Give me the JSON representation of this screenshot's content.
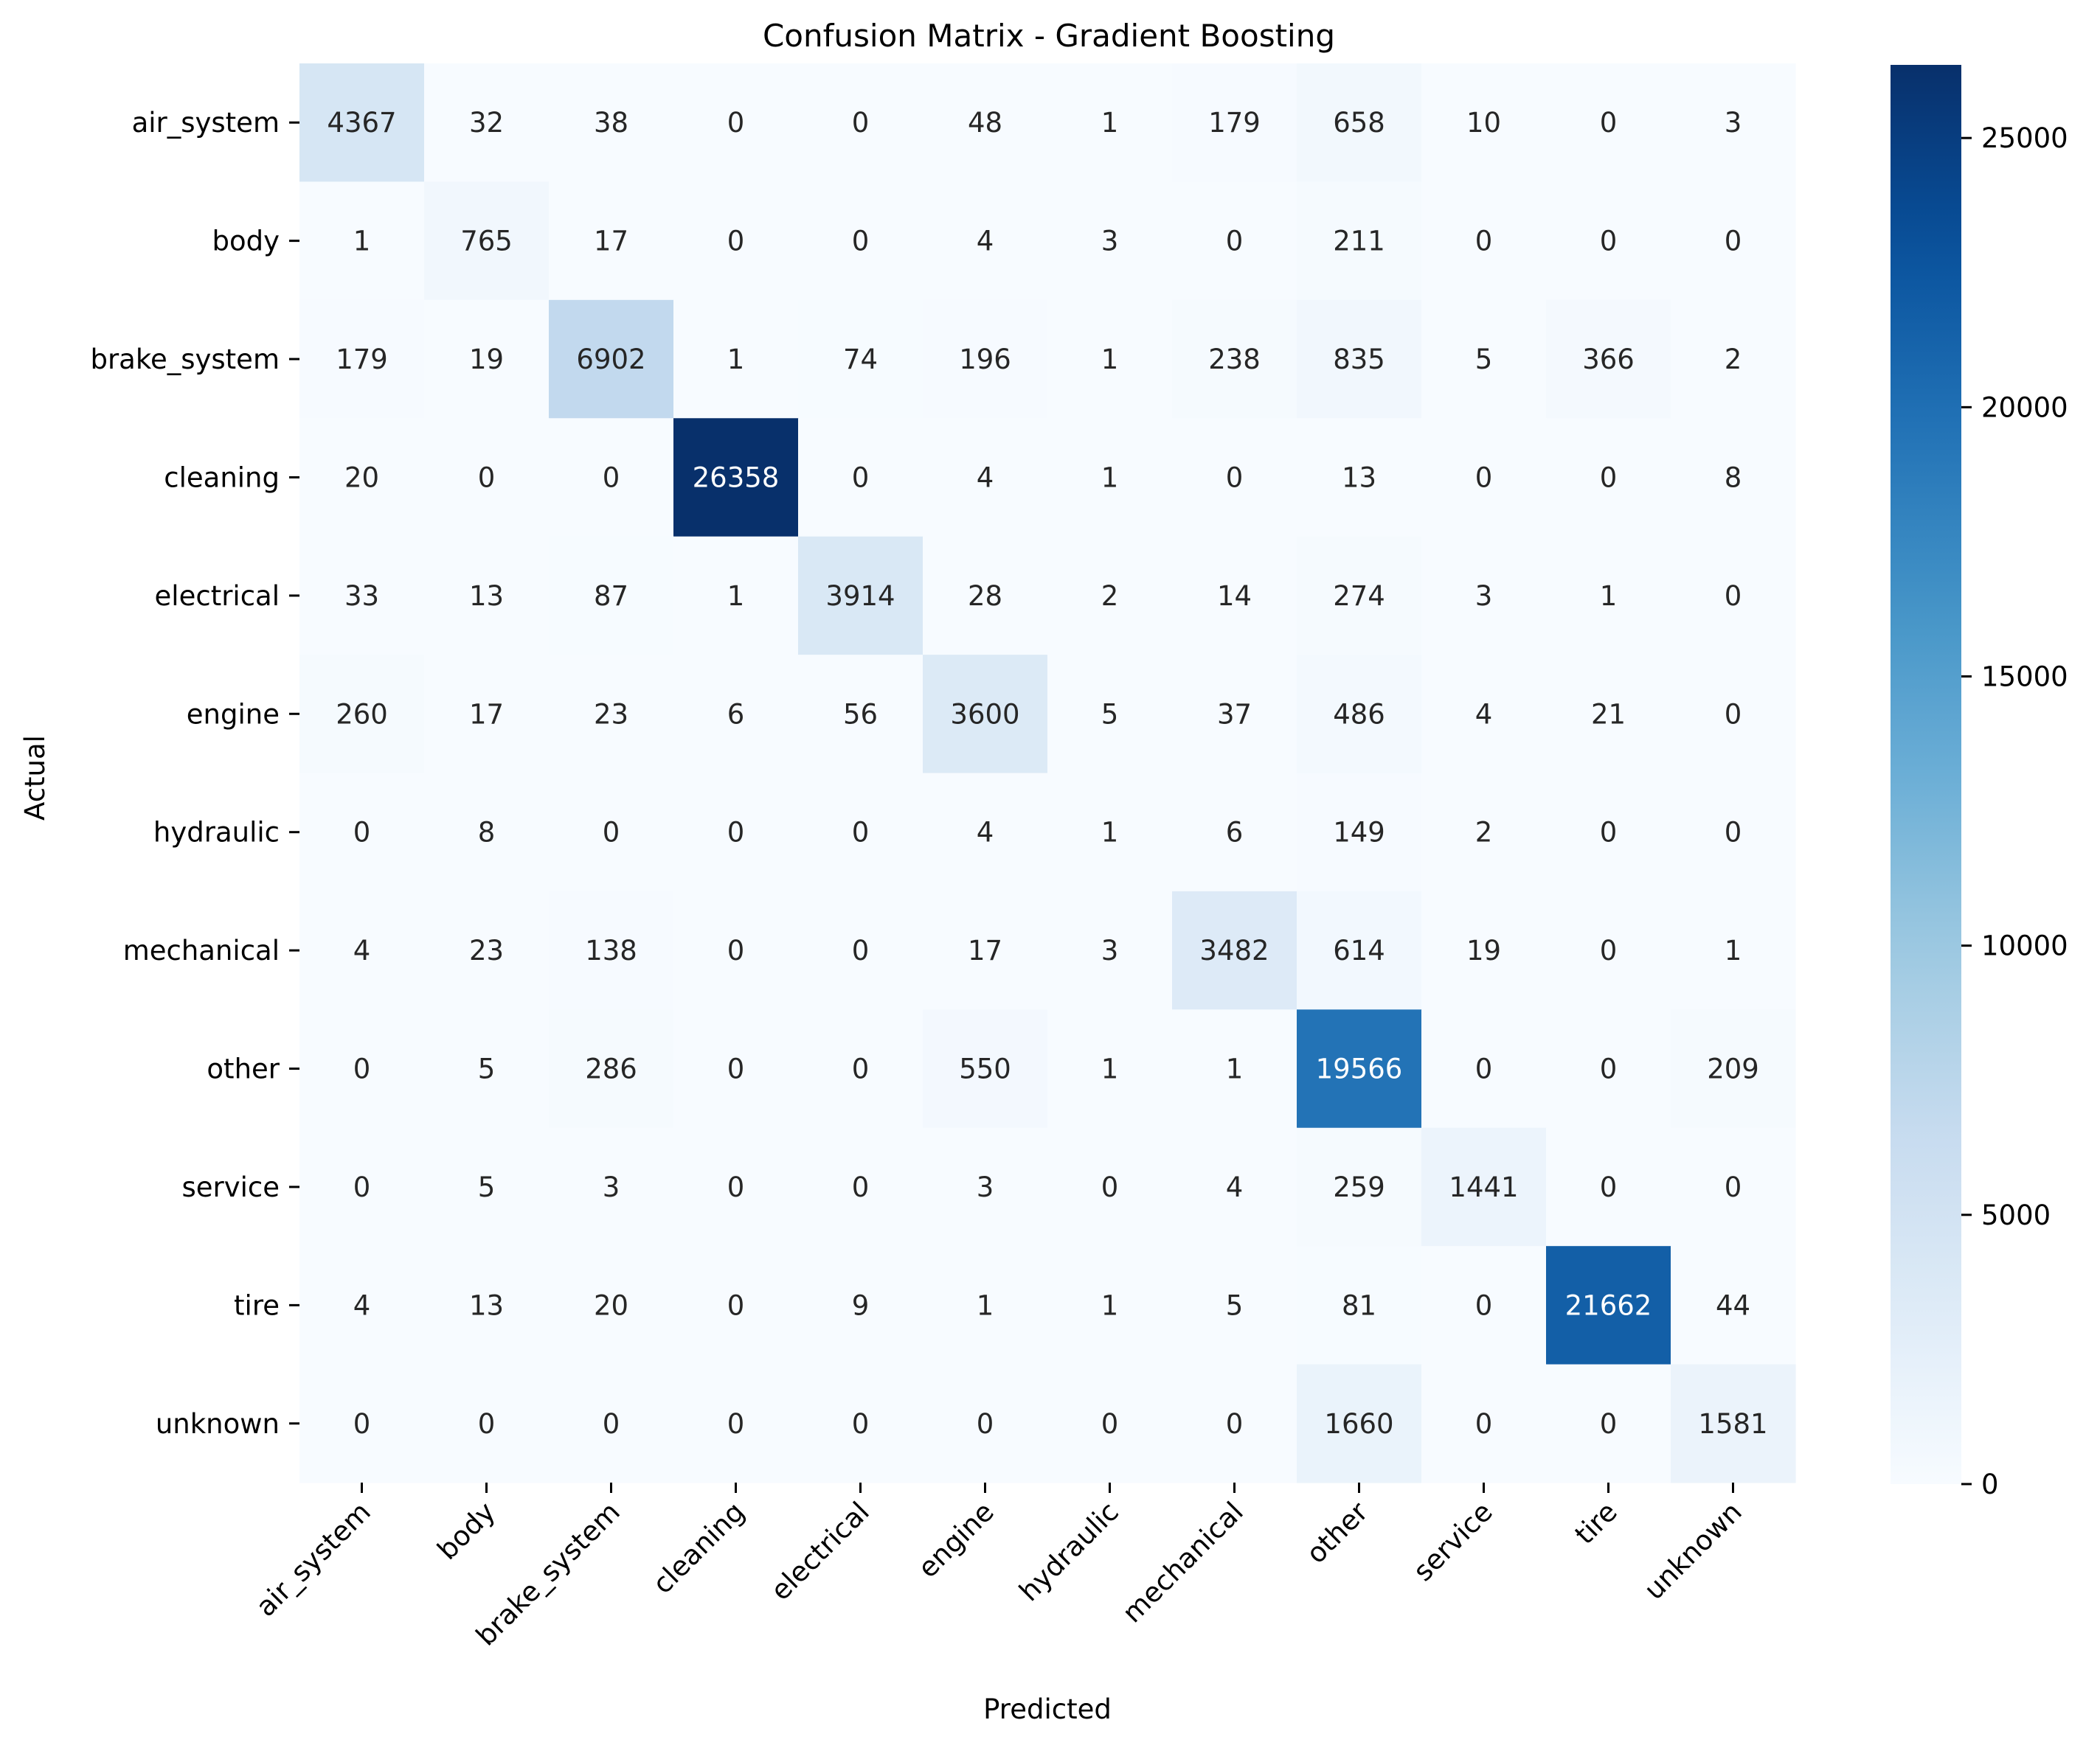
{
  "chart_data": {
    "type": "heatmap",
    "title": "Confusion Matrix - Gradient Boosting",
    "xlabel": "Predicted",
    "ylabel": "Actual",
    "x_categories": [
      "air_system",
      "body",
      "brake_system",
      "cleaning",
      "electrical",
      "engine",
      "hydraulic",
      "mechanical",
      "other",
      "service",
      "tire",
      "unknown"
    ],
    "y_categories": [
      "air_system",
      "body",
      "brake_system",
      "cleaning",
      "electrical",
      "engine",
      "hydraulic",
      "mechanical",
      "other",
      "service",
      "tire",
      "unknown"
    ],
    "values": [
      [
        4367,
        32,
        38,
        0,
        0,
        48,
        1,
        179,
        658,
        10,
        0,
        3
      ],
      [
        1,
        765,
        17,
        0,
        0,
        4,
        3,
        0,
        211,
        0,
        0,
        0
      ],
      [
        179,
        19,
        6902,
        1,
        74,
        196,
        1,
        238,
        835,
        5,
        366,
        2
      ],
      [
        20,
        0,
        0,
        26358,
        0,
        4,
        1,
        0,
        13,
        0,
        0,
        8
      ],
      [
        33,
        13,
        87,
        1,
        3914,
        28,
        2,
        14,
        274,
        3,
        1,
        0
      ],
      [
        260,
        17,
        23,
        6,
        56,
        3600,
        5,
        37,
        486,
        4,
        21,
        0
      ],
      [
        0,
        8,
        0,
        0,
        0,
        4,
        1,
        6,
        149,
        2,
        0,
        0
      ],
      [
        4,
        23,
        138,
        0,
        0,
        17,
        3,
        3482,
        614,
        19,
        0,
        1
      ],
      [
        0,
        5,
        286,
        0,
        0,
        550,
        1,
        1,
        19566,
        0,
        0,
        209
      ],
      [
        0,
        5,
        3,
        0,
        0,
        3,
        0,
        4,
        259,
        1441,
        0,
        0
      ],
      [
        4,
        13,
        20,
        0,
        9,
        1,
        1,
        5,
        81,
        0,
        21662,
        44
      ],
      [
        0,
        0,
        0,
        0,
        0,
        0,
        0,
        0,
        1660,
        0,
        0,
        1581
      ]
    ],
    "colormap": "Blues",
    "vmin": 0,
    "vmax": 26358,
    "colorbar_ticks": [
      0,
      5000,
      10000,
      15000,
      20000,
      25000
    ],
    "colorbar_labels": [
      "0",
      "5000",
      "10000",
      "15000",
      "20000",
      "25000"
    ],
    "annotations": true,
    "grid": false
  }
}
